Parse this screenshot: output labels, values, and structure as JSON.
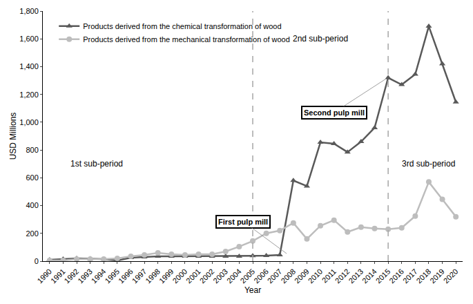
{
  "chart_data": {
    "type": "line",
    "x_label": "Year",
    "y_label": "USD Millions",
    "x": [
      1990,
      1991,
      1992,
      1993,
      1994,
      1995,
      1996,
      1997,
      1998,
      1999,
      2000,
      2001,
      2002,
      2003,
      2004,
      2005,
      2006,
      2007,
      2008,
      2009,
      2010,
      2011,
      2012,
      2013,
      2014,
      2015,
      2016,
      2017,
      2018,
      2019,
      2020
    ],
    "series": [
      {
        "name": "Products derived from the chemical transformation of wood",
        "color": "#595959",
        "marker": "triangle-up",
        "line_style": "solid",
        "values": [
          10,
          15,
          20,
          18,
          15,
          5,
          25,
          30,
          35,
          35,
          35,
          35,
          35,
          35,
          35,
          38,
          40,
          45,
          580,
          540,
          855,
          845,
          785,
          860,
          960,
          1320,
          1270,
          1345,
          1690,
          1420,
          1145
        ]
      },
      {
        "name": "Products derived from the mechanical transformation of wood",
        "color": "#bdbdbd",
        "marker": "circle",
        "line_style": "solid",
        "values": [
          5,
          5,
          15,
          15,
          15,
          20,
          35,
          45,
          60,
          50,
          45,
          50,
          50,
          70,
          105,
          145,
          200,
          220,
          275,
          160,
          255,
          295,
          210,
          245,
          235,
          230,
          240,
          325,
          570,
          445,
          320
        ]
      }
    ],
    "xlim": [
      1989.5,
      2020.5
    ],
    "xticks": [
      1990,
      1991,
      1992,
      1993,
      1994,
      1995,
      1996,
      1997,
      1998,
      1999,
      2000,
      2001,
      2002,
      2003,
      2004,
      2005,
      2006,
      2007,
      2008,
      2009,
      2010,
      2011,
      2012,
      2013,
      2014,
      2015,
      2016,
      2017,
      2018,
      2019,
      2020
    ],
    "ylim": [
      0,
      1800
    ],
    "yticks": [
      0,
      200,
      400,
      600,
      800,
      {
        "value": 1000,
        "label": "1,000"
      },
      {
        "value": 1200,
        "label": "1,200"
      },
      {
        "value": 1400,
        "label": "1,400"
      },
      {
        "value": 1600,
        "label": "1,600"
      },
      {
        "value": 1800,
        "label": "1,800"
      }
    ],
    "grid": false,
    "legend": "top-left",
    "reference_lines": [
      {
        "x": 2005,
        "line_style": "dashed"
      },
      {
        "x": 2015,
        "line_style": "dashed"
      }
    ],
    "annotations": [
      {
        "text": "1st sub-period",
        "x": 1993.5,
        "y": 700
      },
      {
        "text": "2nd sub-period",
        "x": 2010,
        "y": 1600
      },
      {
        "text": "3rd sub-period",
        "x": 2018,
        "y": 700
      },
      {
        "text": "First pulp mill",
        "x": 2004.3,
        "y": 285,
        "points_to": {
          "x": 2007.5,
          "y": 55
        }
      },
      {
        "text": "Second pulp mill",
        "x": 2011,
        "y": 1070,
        "points_to": {
          "x": 2014.8,
          "y": 1310
        }
      }
    ]
  }
}
